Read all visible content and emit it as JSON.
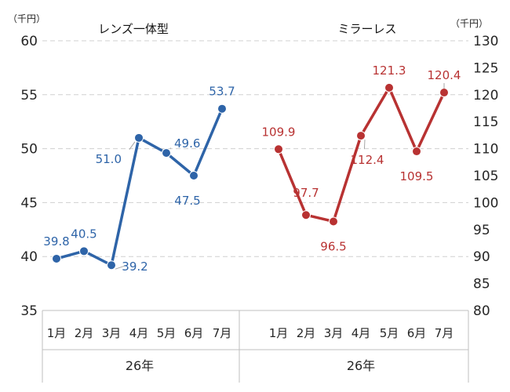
{
  "chart_data": {
    "type": "line",
    "panels": [
      {
        "title": "レンズ一体型",
        "axis_side": "left",
        "unit": "（千円）",
        "ylim": [
          35,
          60
        ],
        "yticks": [
          35,
          40,
          45,
          50,
          55,
          60
        ],
        "color": "#2E64A8",
        "categories": [
          "1月",
          "2月",
          "3月",
          "4月",
          "5月",
          "6月",
          "7月"
        ],
        "group_label": "26年",
        "values": [
          39.8,
          40.5,
          39.2,
          51.0,
          49.6,
          47.5,
          53.7
        ],
        "labels": [
          "39.8",
          "40.5",
          "39.2",
          "51.0",
          "49.6",
          "47.5",
          "53.7"
        ]
      },
      {
        "title": "ミラーレス",
        "axis_side": "right",
        "unit": "（千円）",
        "ylim": [
          80,
          130
        ],
        "yticks": [
          80,
          85,
          90,
          95,
          100,
          105,
          110,
          115,
          120,
          125,
          130
        ],
        "color": "#B83232",
        "categories": [
          "1月",
          "2月",
          "3月",
          "4月",
          "5月",
          "6月",
          "7月"
        ],
        "group_label": "26年",
        "values": [
          109.9,
          97.7,
          96.5,
          112.4,
          121.3,
          109.5,
          120.4
        ],
        "labels": [
          "109.9",
          "97.7",
          "96.5",
          "112.4",
          "121.3",
          "109.5",
          "120.4"
        ]
      }
    ],
    "grid": "horizontal dashed"
  }
}
